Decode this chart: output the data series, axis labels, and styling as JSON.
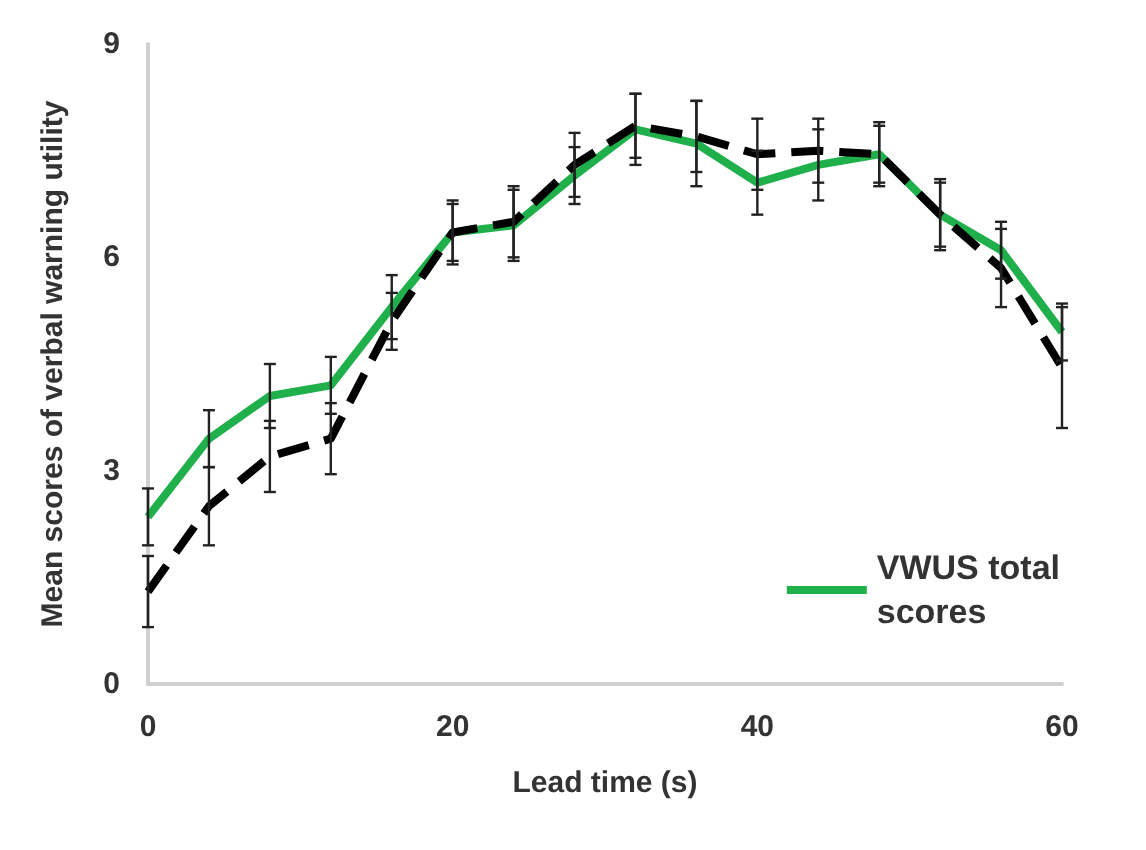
{
  "chart_data": {
    "type": "line",
    "xlabel": "Lead time (s)",
    "ylabel": "Mean scores of verbal warning utility",
    "x": [
      0,
      4,
      8,
      12,
      16,
      20,
      24,
      28,
      32,
      36,
      40,
      44,
      48,
      52,
      56,
      60
    ],
    "series": [
      {
        "name": "VWUS total scores",
        "color": "#1fb04b",
        "line_style": "solid",
        "values": [
          2.35,
          3.45,
          4.05,
          4.2,
          5.3,
          6.35,
          6.45,
          7.15,
          7.8,
          7.6,
          7.05,
          7.3,
          7.45,
          6.6,
          6.1,
          4.95
        ],
        "errors": [
          0.4,
          0.4,
          0.45,
          0.4,
          0.45,
          0.45,
          0.5,
          0.4,
          0.5,
          0.6,
          0.45,
          0.5,
          0.45,
          0.5,
          0.4,
          0.4
        ]
      },
      {
        "color": "#000000",
        "line_style": "dashed",
        "values": [
          1.3,
          2.5,
          3.2,
          3.45,
          5.1,
          6.35,
          6.5,
          7.3,
          7.85,
          7.7,
          7.45,
          7.5,
          7.45,
          6.6,
          5.85,
          4.45
        ],
        "errors": [
          0.5,
          0.55,
          0.5,
          0.5,
          0.4,
          0.4,
          0.5,
          0.45,
          0.45,
          0.5,
          0.5,
          0.45,
          0.4,
          0.45,
          0.55,
          0.85
        ]
      }
    ],
    "xlim": [
      0,
      60
    ],
    "xticks": [
      0,
      20,
      40,
      60
    ],
    "ylim": [
      0,
      9
    ],
    "yticks": [
      0,
      3,
      6,
      9
    ],
    "grid": false,
    "legend": "bottom right",
    "marker": "none"
  }
}
